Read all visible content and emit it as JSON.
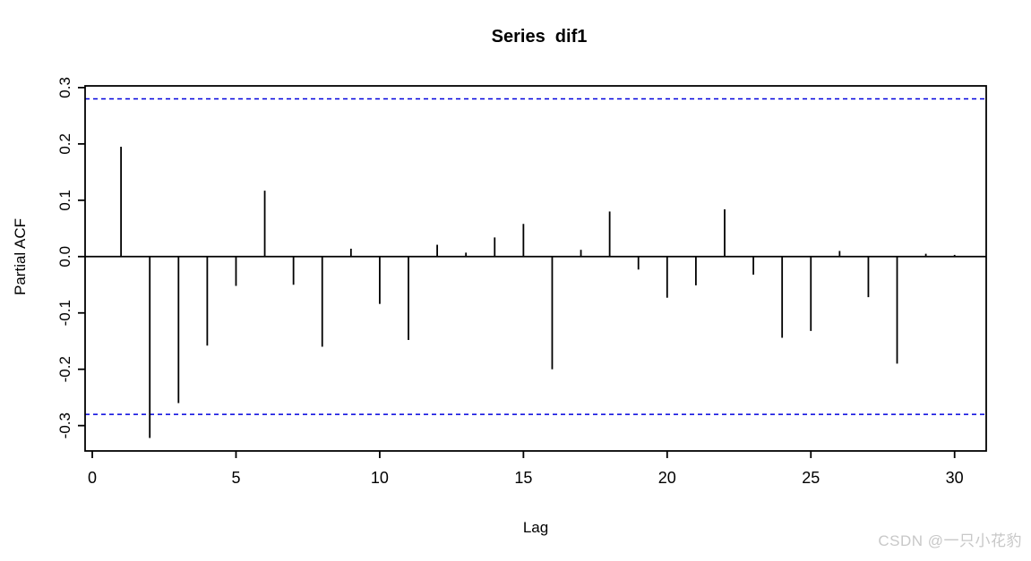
{
  "chart_data": {
    "type": "bar",
    "subtype": "pacf-spike-plot",
    "title": "Series  dif1",
    "xlabel": "Lag",
    "ylabel": "Partial ACF",
    "x": [
      1,
      2,
      3,
      4,
      5,
      6,
      7,
      8,
      9,
      10,
      11,
      12,
      13,
      14,
      15,
      16,
      17,
      18,
      19,
      20,
      21,
      22,
      23,
      24,
      25,
      26,
      27,
      28,
      29,
      30
    ],
    "values": [
      0.195,
      -0.322,
      -0.26,
      -0.158,
      -0.052,
      0.117,
      -0.05,
      -0.16,
      0.014,
      -0.084,
      -0.148,
      0.021,
      0.007,
      0.034,
      0.058,
      -0.2,
      0.012,
      0.08,
      -0.023,
      -0.073,
      -0.051,
      0.084,
      -0.032,
      -0.144,
      -0.132,
      0.01,
      -0.072,
      -0.19,
      0.005,
      0.003
    ],
    "confidence_bounds": {
      "upper": 0.28,
      "lower": -0.28,
      "line_style": "dashed"
    },
    "xlim": [
      -0.25,
      31.1
    ],
    "ylim": [
      -0.345,
      0.303
    ],
    "x_ticks": [
      {
        "value": 0,
        "label": "0"
      },
      {
        "value": 5,
        "label": "5"
      },
      {
        "value": 10,
        "label": "10"
      },
      {
        "value": 15,
        "label": "15"
      },
      {
        "value": 20,
        "label": "20"
      },
      {
        "value": 25,
        "label": "25"
      },
      {
        "value": 30,
        "label": "30"
      }
    ],
    "y_ticks": [
      {
        "value": 0.3,
        "label": "0.3"
      },
      {
        "value": 0.2,
        "label": "0.2"
      },
      {
        "value": 0.1,
        "label": "0.1"
      },
      {
        "value": 0.0,
        "label": "0.0"
      },
      {
        "value": -0.1,
        "label": "-0.1"
      },
      {
        "value": -0.2,
        "label": "-0.2"
      },
      {
        "value": -0.3,
        "label": "-0.3"
      }
    ],
    "grid": false,
    "legend": null,
    "colors": {
      "spike": "#000000",
      "confidence_line": "#0000dd",
      "axis": "#000000",
      "background": "#ffffff"
    }
  },
  "watermark": {
    "text": "CSDN @一只小花豹",
    "color": "#c8c8c8"
  }
}
